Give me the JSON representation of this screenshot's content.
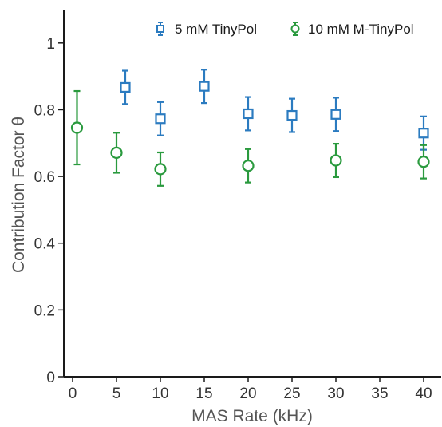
{
  "chart_data": {
    "type": "scatter",
    "xlabel": "MAS Rate (kHz)",
    "ylabel": "Contribution Factor θ",
    "xlim": [
      -1,
      42
    ],
    "ylim": [
      0,
      1.1
    ],
    "x_ticks": [
      0,
      5,
      10,
      15,
      20,
      25,
      30,
      35,
      40
    ],
    "x_tick_labels": [
      "0",
      "5",
      "10",
      "15",
      "20",
      "25",
      "30",
      "35",
      "40"
    ],
    "y_ticks": [
      0,
      0.2,
      0.4,
      0.6,
      0.8,
      1
    ],
    "y_tick_labels": [
      "0",
      "0.2",
      "0.4",
      "0.6",
      "0.8",
      "1"
    ],
    "grid": false,
    "legend_position": "top-right",
    "series": [
      {
        "name": "5 mM TinyPol",
        "marker": "square",
        "color": "#2b7bc0",
        "points": [
          {
            "x": 6,
            "y": 0.867,
            "err": 0.05
          },
          {
            "x": 10,
            "y": 0.773,
            "err": 0.05
          },
          {
            "x": 15,
            "y": 0.87,
            "err": 0.05
          },
          {
            "x": 20,
            "y": 0.788,
            "err": 0.05
          },
          {
            "x": 25,
            "y": 0.783,
            "err": 0.05
          },
          {
            "x": 30,
            "y": 0.786,
            "err": 0.05
          },
          {
            "x": 40,
            "y": 0.73,
            "err": 0.05
          }
        ]
      },
      {
        "name": "10 mM M-TinyPol",
        "marker": "circle",
        "color": "#2a9a3e",
        "points": [
          {
            "x": 0.5,
            "y": 0.746,
            "err": 0.11
          },
          {
            "x": 5,
            "y": 0.671,
            "err": 0.06
          },
          {
            "x": 10,
            "y": 0.622,
            "err": 0.05
          },
          {
            "x": 20,
            "y": 0.632,
            "err": 0.05
          },
          {
            "x": 30,
            "y": 0.648,
            "err": 0.05
          },
          {
            "x": 40,
            "y": 0.644,
            "err": 0.05
          }
        ]
      }
    ]
  }
}
